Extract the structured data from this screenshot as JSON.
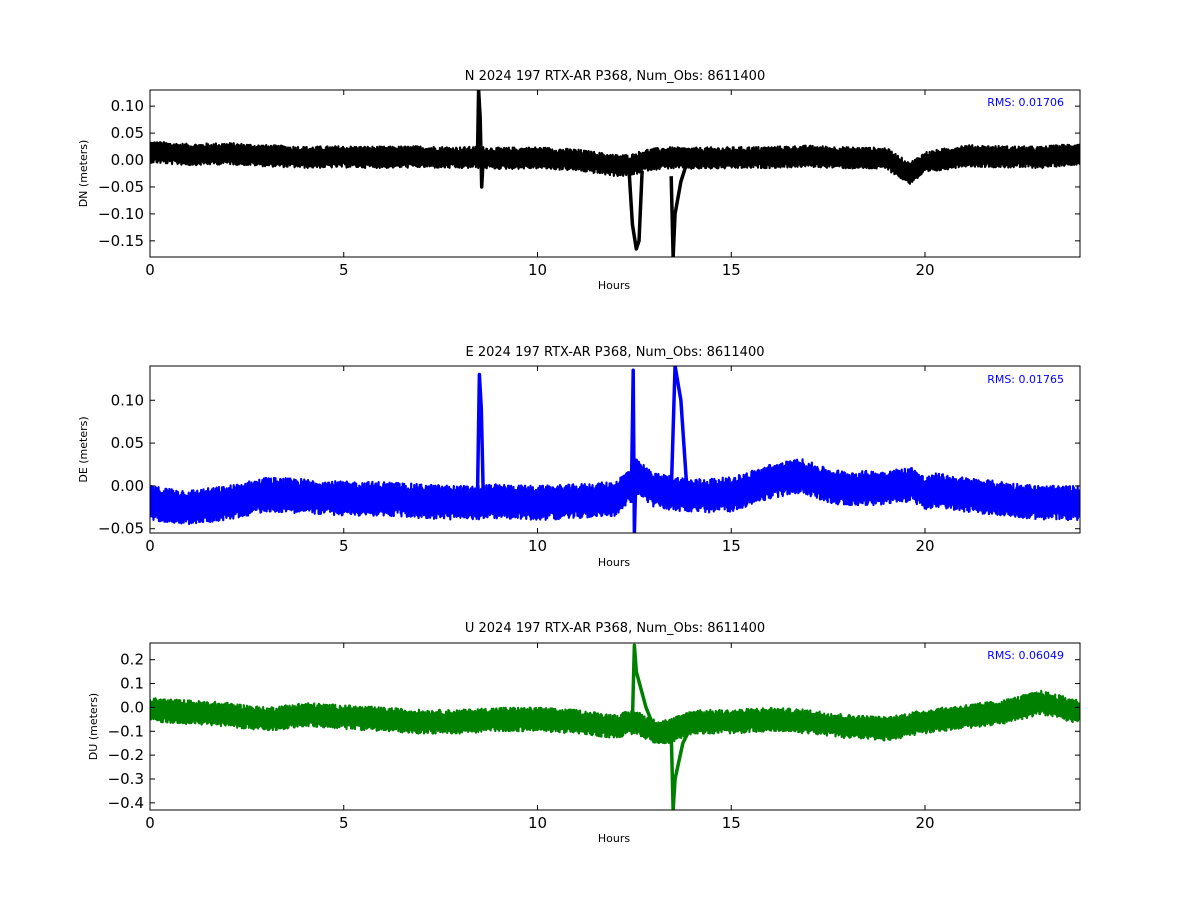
{
  "chart_data": [
    {
      "type": "line",
      "component": "N",
      "title": "N 2024 197 RTX-AR  P368, Num_Obs: 8611400",
      "xlabel": "Hours",
      "ylabel": "DN (meters)",
      "xlim": [
        0,
        24
      ],
      "ylim": [
        -0.18,
        0.13
      ],
      "x_ticks": [
        0,
        5,
        10,
        15,
        20
      ],
      "y_ticks": [
        0.1,
        0.05,
        0.0,
        -0.05,
        -0.1,
        -0.15
      ],
      "y_tick_labels": [
        "0.10",
        "0.05",
        "0.00",
        "−0.05",
        "−0.10",
        "−0.15"
      ],
      "annotation": "RMS:  0.01706",
      "color": "#000000",
      "baseline": [
        [
          0,
          0.015
        ],
        [
          1,
          0.01
        ],
        [
          2,
          0.012
        ],
        [
          3,
          0.008
        ],
        [
          4,
          0.005
        ],
        [
          5,
          0.006
        ],
        [
          6,
          0.005
        ],
        [
          7,
          0.006
        ],
        [
          8,
          0.004
        ],
        [
          8.4,
          0.005
        ],
        [
          8.7,
          0.004
        ],
        [
          9,
          0.003
        ],
        [
          10,
          0.004
        ],
        [
          11,
          0.0
        ],
        [
          12,
          -0.01
        ],
        [
          12.4,
          -0.01
        ],
        [
          12.8,
          0.0
        ],
        [
          13.3,
          0.004
        ],
        [
          14,
          0.003
        ],
        [
          15,
          0.004
        ],
        [
          16,
          0.005
        ],
        [
          17,
          0.007
        ],
        [
          18,
          0.004
        ],
        [
          19,
          0.003
        ],
        [
          19.6,
          -0.025
        ],
        [
          20,
          -0.005
        ],
        [
          21,
          0.008
        ],
        [
          22,
          0.006
        ],
        [
          23,
          0.005
        ],
        [
          24,
          0.012
        ]
      ],
      "noise": 0.02,
      "excursions": [
        [
          [
            8.45,
            0.005
          ],
          [
            8.48,
            0.13
          ],
          [
            8.52,
            0.08
          ],
          [
            8.56,
            -0.05
          ],
          [
            8.6,
            0.005
          ]
        ],
        [
          [
            12.35,
            -0.005
          ],
          [
            12.45,
            -0.12
          ],
          [
            12.55,
            -0.165
          ],
          [
            12.62,
            -0.15
          ],
          [
            12.7,
            -0.02
          ]
        ],
        [
          [
            13.45,
            -0.03
          ],
          [
            13.5,
            -0.18
          ],
          [
            13.55,
            -0.1
          ],
          [
            13.7,
            -0.04
          ],
          [
            13.9,
            0.005
          ]
        ]
      ]
    },
    {
      "type": "line",
      "component": "E",
      "title": "E 2024 197 RTX-AR  P368, Num_Obs: 8611400",
      "xlabel": "Hours",
      "ylabel": "DE (meters)",
      "xlim": [
        0,
        24
      ],
      "ylim": [
        -0.055,
        0.14
      ],
      "x_ticks": [
        0,
        5,
        10,
        15,
        20
      ],
      "y_ticks": [
        0.1,
        0.05,
        0.0,
        -0.05
      ],
      "y_tick_labels": [
        "0.10",
        "0.05",
        "0.00",
        "−0.05"
      ],
      "annotation": "RMS:  0.01765",
      "color": "#0000ff",
      "baseline": [
        [
          0,
          -0.02
        ],
        [
          1,
          -0.025
        ],
        [
          2,
          -0.02
        ],
        [
          3,
          -0.01
        ],
        [
          4,
          -0.012
        ],
        [
          5,
          -0.015
        ],
        [
          6,
          -0.015
        ],
        [
          7,
          -0.018
        ],
        [
          8,
          -0.02
        ],
        [
          9,
          -0.018
        ],
        [
          10,
          -0.02
        ],
        [
          11,
          -0.018
        ],
        [
          12,
          -0.015
        ],
        [
          12.6,
          0.01
        ],
        [
          13,
          -0.005
        ],
        [
          14,
          -0.012
        ],
        [
          15,
          -0.01
        ],
        [
          16,
          0.005
        ],
        [
          16.8,
          0.012
        ],
        [
          17.5,
          0.0
        ],
        [
          18,
          -0.003
        ],
        [
          19,
          -0.002
        ],
        [
          19.7,
          0.002
        ],
        [
          20,
          -0.01
        ],
        [
          20.3,
          -0.005
        ],
        [
          21,
          -0.01
        ],
        [
          22,
          -0.015
        ],
        [
          23,
          -0.02
        ],
        [
          24,
          -0.02
        ]
      ],
      "noise": 0.02,
      "excursions": [
        [
          [
            8.45,
            -0.015
          ],
          [
            8.5,
            0.13
          ],
          [
            8.55,
            0.09
          ],
          [
            8.6,
            -0.01
          ]
        ],
        [
          [
            12.42,
            -0.02
          ],
          [
            12.47,
            0.135
          ],
          [
            12.5,
            -0.055
          ],
          [
            12.55,
            0.03
          ],
          [
            12.7,
            0.0
          ]
        ],
        [
          [
            13.45,
            -0.01
          ],
          [
            13.55,
            0.14
          ],
          [
            13.7,
            0.1
          ],
          [
            13.85,
            0.0
          ],
          [
            14.0,
            -0.005
          ]
        ]
      ]
    },
    {
      "type": "line",
      "component": "U",
      "title": "U 2024 197 RTX-AR  P368, Num_Obs: 8611400",
      "xlabel": "Hours",
      "ylabel": "DU (meters)",
      "xlim": [
        0,
        24
      ],
      "ylim": [
        -0.43,
        0.27
      ],
      "x_ticks": [
        0,
        5,
        10,
        15,
        20
      ],
      "y_ticks": [
        0.2,
        0.1,
        0.0,
        -0.1,
        -0.2,
        -0.3,
        -0.4
      ],
      "y_tick_labels": [
        "0.2",
        "0.1",
        "0.0",
        "−0.1",
        "−0.2",
        "−0.3",
        "−0.4"
      ],
      "annotation": "RMS:  0.06049",
      "color": "#008000",
      "baseline": [
        [
          0,
          -0.01
        ],
        [
          1,
          -0.02
        ],
        [
          2,
          -0.03
        ],
        [
          3,
          -0.05
        ],
        [
          4,
          -0.03
        ],
        [
          5,
          -0.04
        ],
        [
          6,
          -0.05
        ],
        [
          7,
          -0.06
        ],
        [
          8,
          -0.06
        ],
        [
          9,
          -0.05
        ],
        [
          10,
          -0.05
        ],
        [
          11,
          -0.06
        ],
        [
          12,
          -0.08
        ],
        [
          12.5,
          -0.06
        ],
        [
          13,
          -0.1
        ],
        [
          13.4,
          -0.1
        ],
        [
          14,
          -0.06
        ],
        [
          15,
          -0.06
        ],
        [
          16,
          -0.05
        ],
        [
          17,
          -0.06
        ],
        [
          18,
          -0.08
        ],
        [
          19,
          -0.09
        ],
        [
          20,
          -0.06
        ],
        [
          21,
          -0.04
        ],
        [
          22,
          -0.02
        ],
        [
          23,
          0.02
        ],
        [
          24,
          -0.02
        ]
      ],
      "noise": 0.05,
      "excursions": [
        [
          [
            12.45,
            -0.05
          ],
          [
            12.5,
            0.26
          ],
          [
            12.55,
            0.15
          ],
          [
            12.8,
            0.0
          ],
          [
            13.0,
            -0.08
          ]
        ],
        [
          [
            13.45,
            -0.1
          ],
          [
            13.5,
            -0.43
          ],
          [
            13.55,
            -0.3
          ],
          [
            13.75,
            -0.15
          ],
          [
            14.0,
            -0.07
          ]
        ]
      ]
    }
  ]
}
